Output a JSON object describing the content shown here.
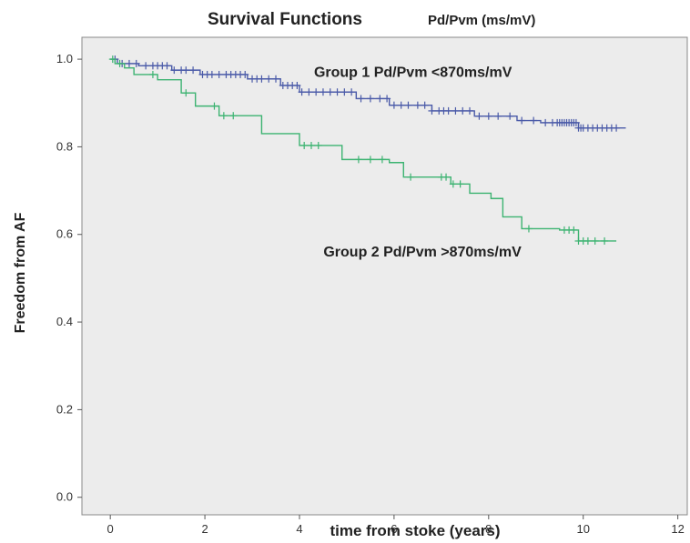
{
  "chart_data": {
    "type": "line",
    "title": "Survival Functions",
    "subtitle": "Pd/Pvm (ms/mV)",
    "xlabel": "time from stoke (years)",
    "ylabel": "Freedom from AF",
    "xlim": [
      -0.6,
      12.2
    ],
    "ylim": [
      -0.04,
      1.05
    ],
    "xticks": [
      0,
      2,
      4,
      6,
      8,
      10,
      12
    ],
    "xtick_labels": [
      "0",
      "2",
      "4",
      "6",
      "8",
      "10",
      "12"
    ],
    "yticks": [
      0.0,
      0.2,
      0.4,
      0.6,
      0.8,
      1.0
    ],
    "ytick_labels": [
      "0.0",
      "0.2",
      "0.4",
      "0.6",
      "0.8",
      "1.0"
    ],
    "grid": false,
    "series": [
      {
        "name": "Group 1 Pd/Pvm <870ms/mV",
        "color": "#4a5aa8",
        "x": [
          0,
          0.15,
          0.6,
          1.3,
          1.9,
          2.9,
          3.6,
          4.0,
          5.2,
          5.9,
          6.8,
          7.7,
          8.6,
          9.1,
          9.9,
          10.9
        ],
        "y": [
          1.0,
          0.99,
          0.985,
          0.975,
          0.965,
          0.955,
          0.94,
          0.925,
          0.91,
          0.895,
          0.882,
          0.87,
          0.86,
          0.855,
          0.843,
          0.843
        ],
        "censored_x": [
          0.1,
          0.25,
          0.4,
          0.55,
          0.75,
          0.9,
          1.0,
          1.1,
          1.2,
          1.35,
          1.5,
          1.6,
          1.75,
          1.95,
          2.05,
          2.15,
          2.3,
          2.45,
          2.55,
          2.65,
          2.75,
          2.85,
          3.0,
          3.1,
          3.2,
          3.35,
          3.5,
          3.65,
          3.75,
          3.85,
          3.95,
          4.05,
          4.2,
          4.35,
          4.5,
          4.65,
          4.8,
          4.95,
          5.1,
          5.3,
          5.5,
          5.7,
          5.85,
          6.0,
          6.15,
          6.3,
          6.5,
          6.65,
          6.8,
          6.95,
          7.05,
          7.15,
          7.3,
          7.45,
          7.6,
          7.8,
          8.0,
          8.2,
          8.45,
          8.7,
          8.95,
          9.2,
          9.35,
          9.45,
          9.5,
          9.55,
          9.6,
          9.65,
          9.7,
          9.75,
          9.8,
          9.85,
          9.9,
          9.95,
          10.0,
          10.1,
          10.2,
          10.3,
          10.4,
          10.5,
          10.6,
          10.7
        ]
      },
      {
        "name": "Group 2 Pd/Pvm >870ms/mV",
        "color": "#3cb371",
        "x": [
          0,
          0.1,
          0.3,
          0.5,
          1.0,
          1.5,
          1.8,
          2.3,
          3.2,
          4.0,
          4.9,
          5.9,
          6.2,
          7.2,
          7.6,
          8.05,
          8.3,
          8.7,
          9.5,
          9.9,
          10.7
        ],
        "y": [
          1.0,
          0.99,
          0.98,
          0.965,
          0.953,
          0.923,
          0.893,
          0.871,
          0.83,
          0.803,
          0.771,
          0.764,
          0.731,
          0.715,
          0.694,
          0.682,
          0.64,
          0.613,
          0.61,
          0.585,
          0.585
        ],
        "censored_x": [
          0.05,
          0.2,
          0.9,
          1.6,
          2.2,
          2.4,
          2.6,
          4.1,
          4.25,
          4.4,
          5.25,
          5.5,
          5.75,
          6.35,
          7.0,
          7.1,
          7.25,
          7.4,
          8.85,
          9.6,
          9.7,
          9.8,
          9.9,
          10.0,
          10.1,
          10.25,
          10.45
        ]
      }
    ],
    "annotations": [
      {
        "text": "Group 1 Pd/Pvm <870ms/mV",
        "x": 6.4,
        "y": 0.96
      },
      {
        "text": "Group 2 Pd/Pvm >870ms/mV",
        "x": 6.6,
        "y": 0.55
      }
    ]
  }
}
